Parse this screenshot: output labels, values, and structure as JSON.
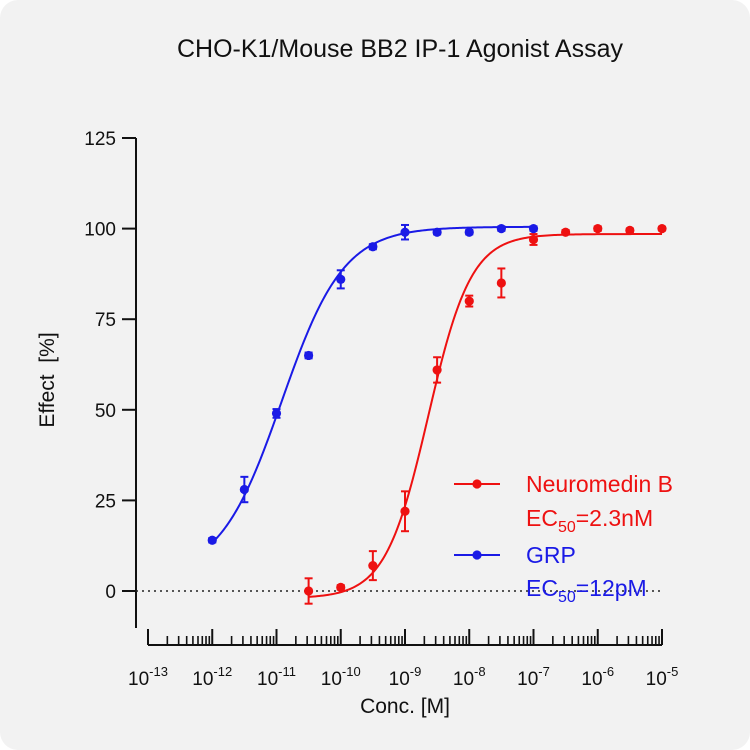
{
  "chart_data": {
    "type": "scatter",
    "title": "CHO-K1/Mouse BB2 IP-1 Agonist Assay",
    "xlabel": "Conc. [M]",
    "ylabel": "Effect  [%]",
    "x_scale": "log",
    "xlim": [
      1e-13,
      1e-05
    ],
    "ylim": [
      -10,
      125
    ],
    "x_ticks": [
      {
        "base": "10",
        "exp": "-13"
      },
      {
        "base": "10",
        "exp": "-12"
      },
      {
        "base": "10",
        "exp": "-11"
      },
      {
        "base": "10",
        "exp": "-10"
      },
      {
        "base": "10",
        "exp": "-9"
      },
      {
        "base": "10",
        "exp": "-8"
      },
      {
        "base": "10",
        "exp": "-7"
      },
      {
        "base": "10",
        "exp": "-6"
      },
      {
        "base": "10",
        "exp": "-5"
      }
    ],
    "y_ticks": [
      0,
      25,
      50,
      75,
      100,
      125
    ],
    "y_tick_labels": [
      "0",
      "25",
      "50",
      "75",
      "100",
      "125"
    ],
    "reference_line_y": 0,
    "legend_position": "bottom-right",
    "series": [
      {
        "name": "Neuromedin B",
        "ec50_label": {
          "prefix": "EC",
          "sub": "50",
          "suffix": "=2.3nM"
        },
        "color": "#ee1111",
        "points": [
          {
            "x": 3.16e-11,
            "y": 0,
            "err": 3.5
          },
          {
            "x": 1e-10,
            "y": 1,
            "err": 0.6
          },
          {
            "x": 3.16e-10,
            "y": 7,
            "err": 4
          },
          {
            "x": 1e-09,
            "y": 22,
            "err": 5.5
          },
          {
            "x": 3.16e-09,
            "y": 61,
            "err": 3.5
          },
          {
            "x": 1e-08,
            "y": 80,
            "err": 1.5
          },
          {
            "x": 3.16e-08,
            "y": 85,
            "err": 4
          },
          {
            "x": 1e-07,
            "y": 97,
            "err": 1.5
          },
          {
            "x": 3.16e-07,
            "y": 99,
            "err": 0.6
          },
          {
            "x": 1e-06,
            "y": 100,
            "err": 0.6
          },
          {
            "x": 3.16e-06,
            "y": 99.5,
            "err": 0.5
          },
          {
            "x": 1e-05,
            "y": 100,
            "err": 0.5
          }
        ],
        "fit": {
          "bottom": -2,
          "top": 98.5,
          "ec50": 2.3e-09,
          "hill": 1.3,
          "x_from": 3.16e-11,
          "x_to": 1e-05
        }
      },
      {
        "name": "GRP",
        "ec50_label": {
          "prefix": "EC",
          "sub": "50",
          "suffix": "=12pM"
        },
        "color": "#1a1ae6",
        "points": [
          {
            "x": 1e-12,
            "y": 14,
            "err": 0.6
          },
          {
            "x": 3.16e-12,
            "y": 28,
            "err": 3.5
          },
          {
            "x": 1e-11,
            "y": 49,
            "err": 1.2
          },
          {
            "x": 3.16e-11,
            "y": 65,
            "err": 0.8
          },
          {
            "x": 1e-10,
            "y": 86,
            "err": 2.5
          },
          {
            "x": 3.16e-10,
            "y": 95,
            "err": 0.7
          },
          {
            "x": 1e-09,
            "y": 99,
            "err": 2
          },
          {
            "x": 3.16e-09,
            "y": 99,
            "err": 0.6
          },
          {
            "x": 1e-08,
            "y": 99,
            "err": 0.6
          },
          {
            "x": 3.16e-08,
            "y": 100,
            "err": 0.6
          },
          {
            "x": 1e-07,
            "y": 100,
            "err": 0.6
          }
        ],
        "fit": {
          "bottom": 4,
          "top": 100.5,
          "ec50": 1.2e-11,
          "hill": 0.9,
          "x_from": 1e-12,
          "x_to": 1e-07
        }
      }
    ]
  }
}
